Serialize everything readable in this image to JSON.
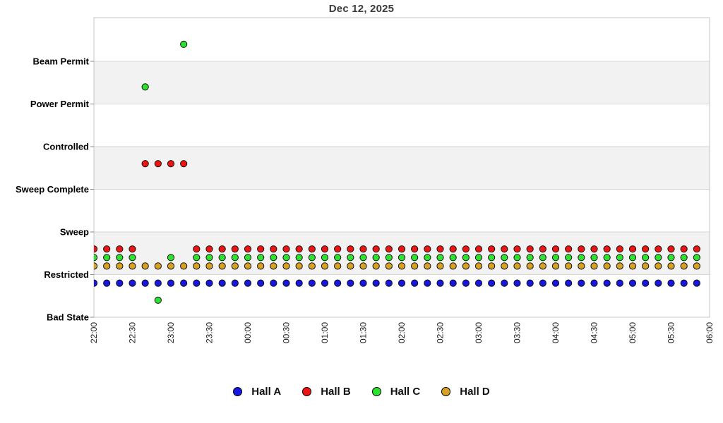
{
  "chart_data": {
    "type": "scatter",
    "title": "Dec 12, 2025",
    "y_categories": [
      "Bad State",
      "Restricted",
      "Sweep",
      "Sweep Complete",
      "Controlled",
      "Power Permit",
      "Beam Permit"
    ],
    "x_tick_labels": [
      "22:00",
      "22:30",
      "23:00",
      "23:30",
      "00:00",
      "00:30",
      "01:00",
      "01:30",
      "02:00",
      "02:30",
      "03:00",
      "03:30",
      "04:00",
      "04:30",
      "05:00",
      "05:30",
      "06:00"
    ],
    "sample_interval_minutes": 10,
    "legend_position": "bottom",
    "grid": {
      "band_fill": "#f2f2f2",
      "line_color": "#d6d6d6",
      "border_color": "#c6c6c6",
      "tick_color": "#888888"
    },
    "times": [
      "22:00",
      "22:10",
      "22:20",
      "22:30",
      "22:40",
      "22:50",
      "23:00",
      "23:10",
      "23:20",
      "23:30",
      "23:40",
      "23:50",
      "00:00",
      "00:10",
      "00:20",
      "00:30",
      "00:40",
      "00:50",
      "01:00",
      "01:10",
      "01:20",
      "01:30",
      "01:40",
      "01:50",
      "02:00",
      "02:10",
      "02:20",
      "02:30",
      "02:40",
      "02:50",
      "03:00",
      "03:10",
      "03:20",
      "03:30",
      "03:40",
      "03:50",
      "04:00",
      "04:10",
      "04:20",
      "04:30",
      "04:40",
      "04:50",
      "05:00",
      "05:10",
      "05:20",
      "05:30",
      "05:40",
      "05:50"
    ],
    "series": [
      {
        "name": "Hall A",
        "color": "#1717e2",
        "y_offset": -0.2,
        "states": [
          "Restricted",
          "Restricted",
          "Restricted",
          "Restricted",
          "Restricted",
          "Restricted",
          "Restricted",
          "Restricted",
          "Restricted",
          "Restricted",
          "Restricted",
          "Restricted",
          "Restricted",
          "Restricted",
          "Restricted",
          "Restricted",
          "Restricted",
          "Restricted",
          "Restricted",
          "Restricted",
          "Restricted",
          "Restricted",
          "Restricted",
          "Restricted",
          "Restricted",
          "Restricted",
          "Restricted",
          "Restricted",
          "Restricted",
          "Restricted",
          "Restricted",
          "Restricted",
          "Restricted",
          "Restricted",
          "Restricted",
          "Restricted",
          "Restricted",
          "Restricted",
          "Restricted",
          "Restricted",
          "Restricted",
          "Restricted",
          "Restricted",
          "Restricted",
          "Restricted",
          "Restricted",
          "Restricted",
          "Restricted"
        ]
      },
      {
        "name": "Hall B",
        "color": "#ee1414",
        "y_offset": 0.6,
        "states": [
          "Restricted",
          "Restricted",
          "Restricted",
          "Restricted",
          "Sweep Complete",
          "Sweep Complete",
          "Sweep Complete",
          "Sweep Complete",
          "Restricted",
          "Restricted",
          "Restricted",
          "Restricted",
          "Restricted",
          "Restricted",
          "Restricted",
          "Restricted",
          "Restricted",
          "Restricted",
          "Restricted",
          "Restricted",
          "Restricted",
          "Restricted",
          "Restricted",
          "Restricted",
          "Restricted",
          "Restricted",
          "Restricted",
          "Restricted",
          "Restricted",
          "Restricted",
          "Restricted",
          "Restricted",
          "Restricted",
          "Restricted",
          "Restricted",
          "Restricted",
          "Restricted",
          "Restricted",
          "Restricted",
          "Restricted",
          "Restricted",
          "Restricted",
          "Restricted",
          "Restricted",
          "Restricted",
          "Restricted",
          "Restricted",
          "Restricted"
        ]
      },
      {
        "name": "Hall C",
        "color": "#2de22d",
        "y_offset": 0.4,
        "states": [
          "Restricted",
          "Restricted",
          "Restricted",
          "Restricted",
          "Power Permit",
          "Bad State",
          "Restricted",
          "Beam Permit",
          "Restricted",
          "Restricted",
          "Restricted",
          "Restricted",
          "Restricted",
          "Restricted",
          "Restricted",
          "Restricted",
          "Restricted",
          "Restricted",
          "Restricted",
          "Restricted",
          "Restricted",
          "Restricted",
          "Restricted",
          "Restricted",
          "Restricted",
          "Restricted",
          "Restricted",
          "Restricted",
          "Restricted",
          "Restricted",
          "Restricted",
          "Restricted",
          "Restricted",
          "Restricted",
          "Restricted",
          "Restricted",
          "Restricted",
          "Restricted",
          "Restricted",
          "Restricted",
          "Restricted",
          "Restricted",
          "Restricted",
          "Restricted",
          "Restricted",
          "Restricted",
          "Restricted",
          "Restricted"
        ]
      },
      {
        "name": "Hall D",
        "color": "#d7a125",
        "y_offset": 0.2,
        "states": [
          "Restricted",
          "Restricted",
          "Restricted",
          "Restricted",
          "Restricted",
          "Restricted",
          "Restricted",
          "Restricted",
          "Restricted",
          "Restricted",
          "Restricted",
          "Restricted",
          "Restricted",
          "Restricted",
          "Restricted",
          "Restricted",
          "Restricted",
          "Restricted",
          "Restricted",
          "Restricted",
          "Restricted",
          "Restricted",
          "Restricted",
          "Restricted",
          "Restricted",
          "Restricted",
          "Restricted",
          "Restricted",
          "Restricted",
          "Restricted",
          "Restricted",
          "Restricted",
          "Restricted",
          "Restricted",
          "Restricted",
          "Restricted",
          "Restricted",
          "Restricted",
          "Restricted",
          "Restricted",
          "Restricted",
          "Restricted",
          "Restricted",
          "Restricted",
          "Restricted",
          "Restricted",
          "Restricted",
          "Restricted"
        ]
      }
    ]
  }
}
